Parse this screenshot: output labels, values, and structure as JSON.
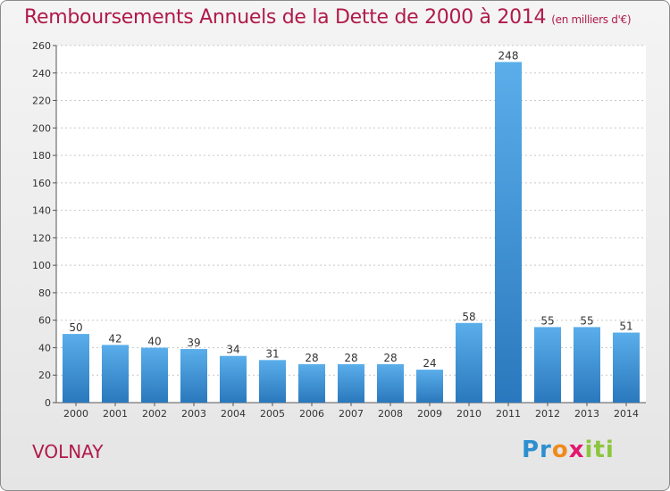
{
  "header": {
    "title": "Remboursements Annuels de la Dette de 2000 à 2014",
    "unit": "(en milliers d'€)"
  },
  "footer": {
    "commune": "VOLNAY",
    "logo_parts": [
      "Pr",
      "o",
      "x",
      "iti"
    ]
  },
  "colors": {
    "accent": "#b01a4a",
    "bar_top": "#5aaeea",
    "bar_bottom": "#2a78bd"
  },
  "chart_data": {
    "type": "bar",
    "categories": [
      "2000",
      "2001",
      "2002",
      "2003",
      "2004",
      "2005",
      "2006",
      "2007",
      "2008",
      "2009",
      "2010",
      "2011",
      "2012",
      "2013",
      "2014"
    ],
    "values": [
      50,
      42,
      40,
      39,
      34,
      31,
      28,
      28,
      28,
      24,
      58,
      248,
      55,
      55,
      51
    ],
    "title": "Remboursements Annuels de la Dette de 2000 à 2014",
    "xlabel": "",
    "ylabel": "",
    "ylim": [
      0,
      260
    ],
    "yticks": [
      0,
      20,
      40,
      60,
      80,
      100,
      120,
      140,
      160,
      180,
      200,
      220,
      240,
      260
    ],
    "grid": "horizontal dotted",
    "legend": "none"
  }
}
